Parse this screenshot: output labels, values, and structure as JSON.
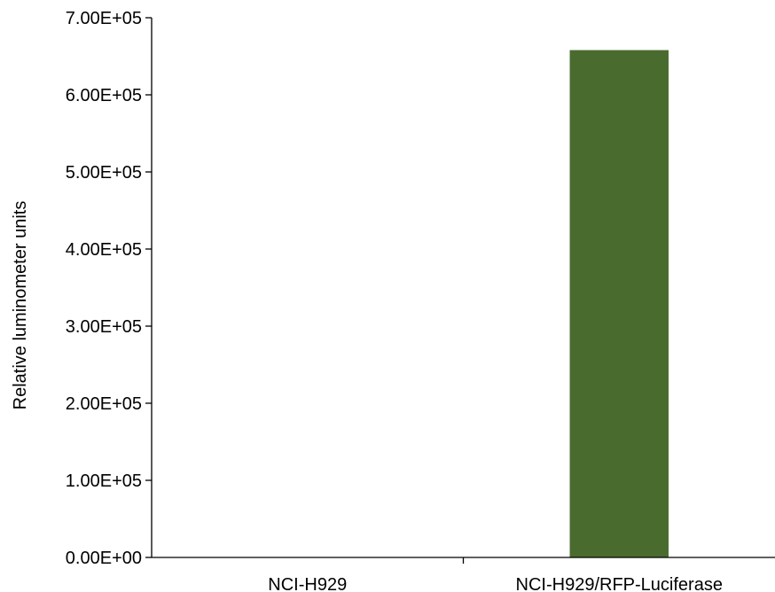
{
  "chart_data": {
    "type": "bar",
    "title": "",
    "xlabel": "",
    "ylabel": "Relative luminometer units",
    "categories": [
      "NCI-H929",
      "NCI-H929/RFP-Luciferase"
    ],
    "values": [
      0,
      658000
    ],
    "ylim": [
      0,
      700000
    ],
    "yticks": [
      0,
      100000,
      200000,
      300000,
      400000,
      500000,
      600000,
      700000
    ],
    "ytick_labels": [
      "0.00E+00",
      "1.00E+05",
      "2.00E+05",
      "3.00E+05",
      "4.00E+05",
      "5.00E+05",
      "6.00E+05",
      "7.00E+05"
    ],
    "grid": false,
    "legend": "none",
    "bar_color": "#4a6b2e",
    "axis_color": "#000000"
  }
}
